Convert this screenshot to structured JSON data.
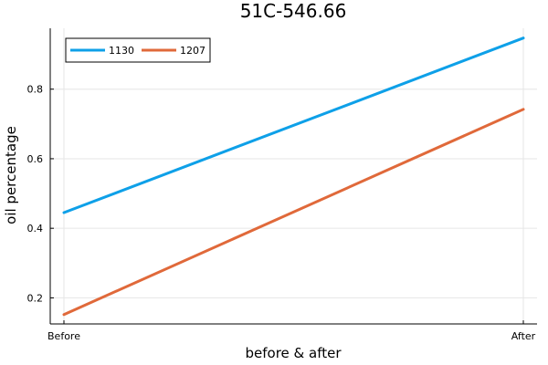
{
  "chart_data": {
    "type": "line",
    "title": "51C-546.66",
    "xlabel": "before & after",
    "ylabel": "oil percentage",
    "categories": [
      "Before",
      "After"
    ],
    "ylim": [
      0.125,
      0.975
    ],
    "yticks": [
      0.2,
      0.4,
      0.6,
      0.8
    ],
    "ytick_labels": [
      "0.2",
      "0.4",
      "0.6",
      "0.8"
    ],
    "grid": true,
    "legend_position": "top-left",
    "series": [
      {
        "name": "1130",
        "color": "#0ea0e8",
        "values": [
          0.445,
          0.947
        ]
      },
      {
        "name": "1207",
        "color": "#e0693a",
        "values": [
          0.152,
          0.742
        ]
      }
    ]
  }
}
